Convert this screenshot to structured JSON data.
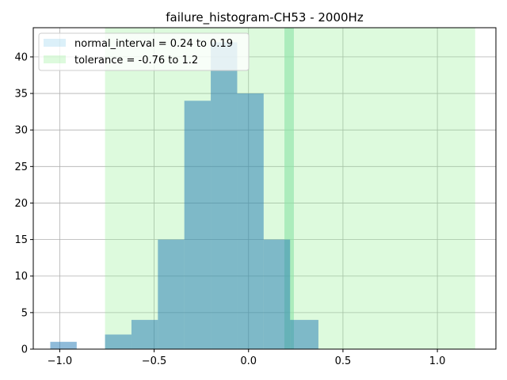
{
  "chart_data": {
    "type": "bar",
    "title": "failure_histogram-CH53 - 2000Hz",
    "xlabel": "",
    "ylabel": "",
    "xlim": [
      -1.14,
      1.31
    ],
    "ylim": [
      0,
      44
    ],
    "grid": true,
    "legend_placement": "top-left",
    "x_ticks": [
      -1.0,
      -0.5,
      0.0,
      0.5,
      1.0
    ],
    "x_tick_labels": [
      "−1.0",
      "−0.5",
      "0.0",
      "0.5",
      "1.0"
    ],
    "y_ticks": [
      0,
      5,
      10,
      15,
      20,
      25,
      30,
      35,
      40
    ],
    "y_tick_labels": [
      "0",
      "5",
      "10",
      "15",
      "20",
      "25",
      "30",
      "35",
      "40"
    ],
    "bins": [
      {
        "x0": -1.05,
        "x1": -0.91,
        "count": 1
      },
      {
        "x0": -0.76,
        "x1": -0.62,
        "count": 2
      },
      {
        "x0": -0.62,
        "x1": -0.48,
        "count": 4
      },
      {
        "x0": -0.48,
        "x1": -0.34,
        "count": 15
      },
      {
        "x0": -0.34,
        "x1": -0.2,
        "count": 34
      },
      {
        "x0": -0.2,
        "x1": -0.06,
        "count": 42
      },
      {
        "x0": -0.06,
        "x1": 0.08,
        "count": 35
      },
      {
        "x0": 0.08,
        "x1": 0.22,
        "count": 15
      },
      {
        "x0": 0.22,
        "x1": 0.37,
        "count": 4
      }
    ],
    "normal_interval": {
      "from": 0.24,
      "to": 0.19,
      "label": "normal_interval = 0.24 to 0.19"
    },
    "tolerance": {
      "from": -0.76,
      "to": 1.2,
      "label": "tolerance = -0.76 to 1.2"
    },
    "colors": {
      "bar": "#1f77b4",
      "normal_interval": "#87ceeb",
      "tolerance": "#90ee90",
      "grid": "#b0b0b0"
    }
  }
}
